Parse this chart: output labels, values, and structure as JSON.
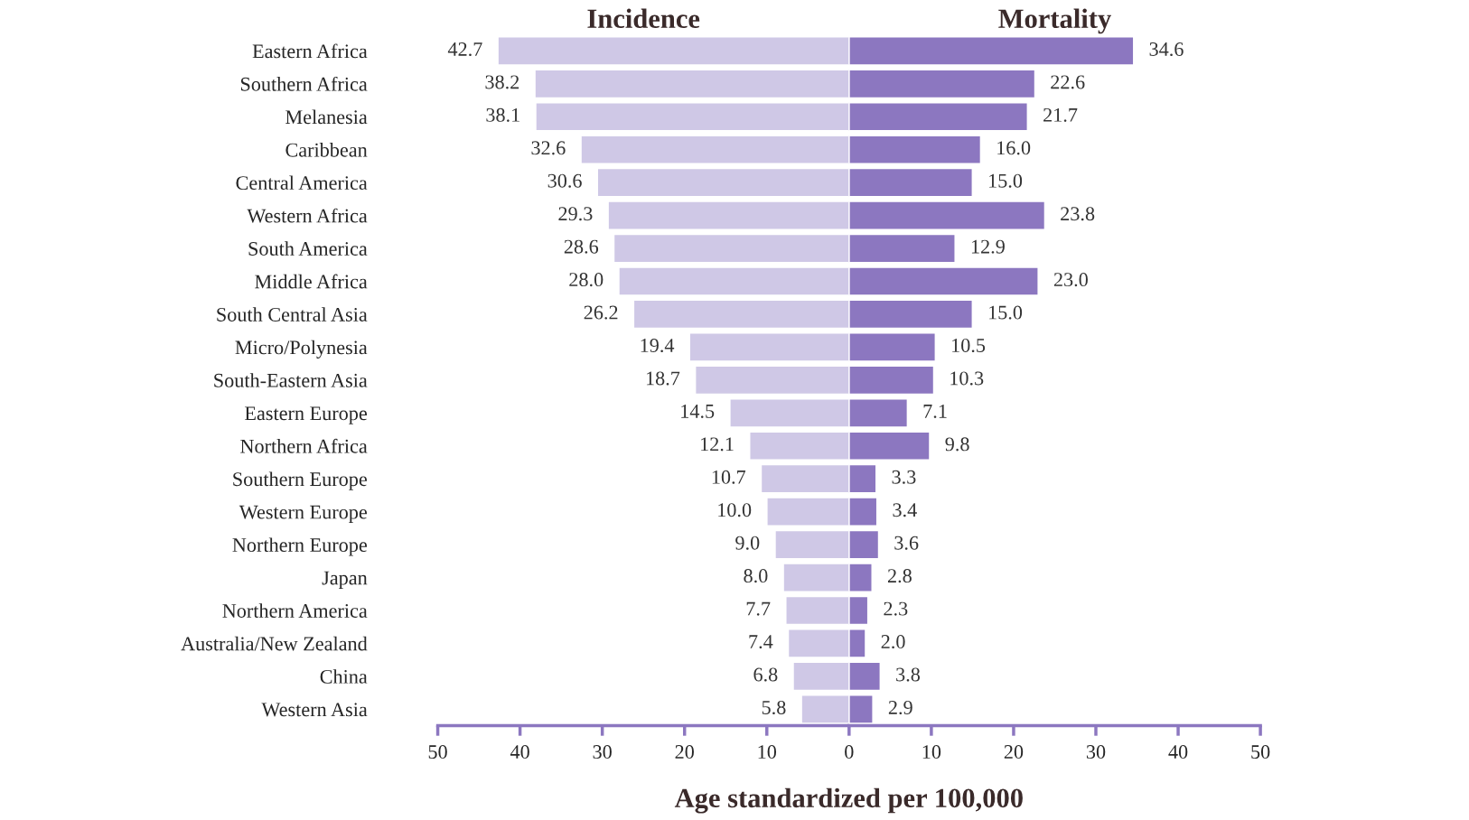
{
  "chart_data": [
    {
      "type": "bar",
      "orientation": "horizontal",
      "title": "Incidence",
      "tick_labels": "xy",
      "categories": [
        "Eastern Africa",
        "Southern Africa",
        "Melanesia",
        "Caribbean",
        "Central America",
        "Western Africa",
        "South America",
        "Middle Africa",
        "South Central Asia",
        "Micro/Polynesia",
        "South-Eastern Asia",
        "Eastern Europe",
        "Northern Africa",
        "Southern Europe",
        "Western Europe",
        "Northern Europe",
        "Japan",
        "Northern America",
        "Australia/New Zealand",
        "China",
        "Western Asia"
      ],
      "values": [
        42.7,
        38.2,
        38.1,
        32.6,
        30.6,
        29.3,
        28.6,
        28.0,
        26.2,
        19.4,
        18.7,
        14.5,
        12.1,
        10.7,
        10.0,
        9.0,
        8.0,
        7.7,
        7.4,
        6.8,
        5.8
      ],
      "value_labels": [
        "42.7",
        "38.2",
        "38.1",
        "32.6",
        "30.6",
        "29.3",
        "28.6",
        "28.0",
        "26.2",
        "19.4",
        "18.7",
        "14.5",
        "12.1",
        "10.7",
        "10.0",
        "9.0",
        "8.0",
        "7.7",
        "7.4",
        "6.8",
        "5.8"
      ],
      "color": "#cfc8e6",
      "xlim": [
        50,
        0
      ],
      "xticks": [
        50,
        40,
        30,
        20,
        10
      ],
      "grid": false
    },
    {
      "type": "bar",
      "orientation": "horizontal",
      "title": "Mortality",
      "xlabel": "Age standardized per 100,000",
      "categories": [
        null,
        null,
        null,
        null,
        null,
        null,
        null,
        null,
        null,
        null,
        null,
        null,
        null,
        null,
        null,
        null,
        null,
        null,
        null,
        null,
        null
      ],
      "values": [
        34.6,
        22.6,
        21.7,
        16.0,
        15.0,
        23.8,
        12.9,
        23.0,
        15.0,
        10.5,
        10.3,
        7.1,
        9.8,
        3.3,
        3.4,
        3.6,
        2.8,
        2.3,
        2.0,
        3.8,
        2.9
      ],
      "value_labels": [
        "34.6",
        "22.6",
        "21.7",
        "16.0",
        "15.0",
        "23.8",
        "12.9",
        "23.0",
        "15.0",
        "10.5",
        "10.3",
        "7.1",
        "9.8",
        "3.3",
        "3.4",
        "3.6",
        "2.8",
        "2.3",
        "2.0",
        "3.8",
        "2.9"
      ],
      "color": "#8c77c0",
      "xlim": [
        0,
        50
      ],
      "xticks": [
        0,
        10,
        20,
        30,
        40,
        50
      ],
      "grid": false
    }
  ]
}
